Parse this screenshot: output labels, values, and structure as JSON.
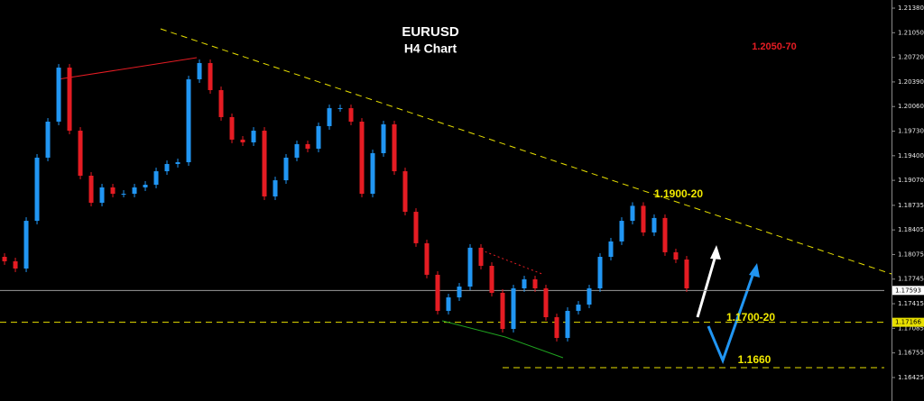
{
  "chart_data": {
    "type": "candlestick",
    "title": "EURUSD",
    "subtitle": "H4 Chart",
    "up_color": "#2196f3",
    "down_color": "#e51c23",
    "x": [
      0,
      1,
      2,
      3,
      4,
      5,
      6,
      7,
      8,
      9,
      10,
      11,
      12,
      13,
      14,
      15,
      16,
      17,
      18,
      19,
      20,
      21,
      22,
      23,
      24,
      25,
      26,
      27,
      28,
      29,
      30,
      31,
      32,
      33,
      34,
      35,
      36,
      37,
      38,
      39,
      40,
      41,
      42,
      43,
      44,
      45,
      46,
      47,
      48,
      49,
      50,
      51,
      52,
      53,
      54,
      55,
      56,
      57,
      58,
      59,
      60,
      61,
      62,
      63
    ],
    "open": [
      1.18044,
      1.17984,
      1.17887,
      1.18527,
      1.19374,
      1.19857,
      1.20582,
      1.19736,
      1.19132,
      1.18769,
      1.18975,
      1.1889,
      1.1889,
      1.18975,
      1.19011,
      1.19192,
      1.19289,
      1.19313,
      1.20425,
      1.20643,
      1.2028,
      1.19918,
      1.19616,
      1.19579,
      1.19736,
      1.18854,
      1.19071,
      1.19374,
      1.19555,
      1.19494,
      1.19797,
      1.20038,
      1.20038,
      1.19857,
      1.1889,
      1.19434,
      1.19821,
      1.19192,
      1.18648,
      1.18226,
      1.17803,
      1.17319,
      1.175,
      1.17645,
      1.18166,
      1.17923,
      1.17561,
      1.17077,
      1.17621,
      1.17742,
      1.17621,
      1.17234,
      1.16956,
      1.17319,
      1.17403,
      1.17621,
      1.18044,
      1.1825,
      1.18527,
      1.18728,
      1.18371,
      1.18565,
      1.18105,
      1.18008
    ],
    "high": [
      1.18092,
      1.18032,
      1.18575,
      1.19422,
      1.19905,
      1.2063,
      1.2063,
      1.19784,
      1.1918,
      1.19023,
      1.19023,
      1.18938,
      1.19023,
      1.19059,
      1.1924,
      1.19337,
      1.19361,
      1.20473,
      1.20691,
      1.20691,
      1.20328,
      1.19966,
      1.19664,
      1.19784,
      1.19784,
      1.19119,
      1.19422,
      1.19603,
      1.19603,
      1.19845,
      1.20086,
      1.20086,
      1.20086,
      1.19905,
      1.19482,
      1.19869,
      1.19869,
      1.1924,
      1.18696,
      1.18274,
      1.17851,
      1.17548,
      1.17693,
      1.18214,
      1.18214,
      1.17971,
      1.17609,
      1.17669,
      1.1779,
      1.1779,
      1.17669,
      1.17282,
      1.17367,
      1.17451,
      1.17669,
      1.18092,
      1.18298,
      1.18575,
      1.18776,
      1.18776,
      1.18613,
      1.18613,
      1.18153,
      1.18056
    ],
    "low": [
      1.17936,
      1.17839,
      1.17839,
      1.18479,
      1.19326,
      1.19809,
      1.19688,
      1.19084,
      1.18721,
      1.18721,
      1.18842,
      1.18842,
      1.18842,
      1.18927,
      1.18963,
      1.19144,
      1.19241,
      1.19265,
      1.20377,
      1.20232,
      1.1987,
      1.19568,
      1.19531,
      1.19531,
      1.18806,
      1.18806,
      1.19023,
      1.19326,
      1.19446,
      1.19446,
      1.19749,
      1.1999,
      1.19809,
      1.18842,
      1.18842,
      1.19386,
      1.19144,
      1.186,
      1.18178,
      1.17755,
      1.17271,
      1.17271,
      1.17452,
      1.17597,
      1.17875,
      1.17513,
      1.17029,
      1.17029,
      1.17573,
      1.17573,
      1.17186,
      1.16908,
      1.16908,
      1.17271,
      1.17355,
      1.17573,
      1.17996,
      1.18202,
      1.18479,
      1.18323,
      1.18323,
      1.18057,
      1.1796,
      1.17573
    ],
    "close": [
      1.17984,
      1.17887,
      1.18527,
      1.19374,
      1.19857,
      1.20582,
      1.19736,
      1.19132,
      1.18769,
      1.18975,
      1.1889,
      1.1889,
      1.18975,
      1.19011,
      1.19192,
      1.19289,
      1.19313,
      1.20425,
      1.20643,
      1.2028,
      1.19918,
      1.19616,
      1.19579,
      1.19736,
      1.18854,
      1.19071,
      1.19374,
      1.19555,
      1.19494,
      1.19797,
      1.20038,
      1.20038,
      1.19857,
      1.1889,
      1.19434,
      1.19821,
      1.19192,
      1.18648,
      1.18226,
      1.17803,
      1.17319,
      1.175,
      1.17645,
      1.18166,
      1.17923,
      1.17561,
      1.17077,
      1.17621,
      1.17742,
      1.17621,
      1.17234,
      1.16956,
      1.17319,
      1.17403,
      1.17621,
      1.18044,
      1.1825,
      1.18527,
      1.18728,
      1.18371,
      1.18565,
      1.18105,
      1.18008,
      1.17621
    ],
    "xlim": [
      -0.42,
      81.92
    ],
    "ylim": [
      1.1611,
      1.21489
    ],
    "yticks": [
      {
        "value": 1.2138,
        "label": "1.21380"
      },
      {
        "value": 1.2105,
        "label": "1.21050"
      },
      {
        "value": 1.2072,
        "label": "1.20720"
      },
      {
        "value": 1.2039,
        "label": "1.20390"
      },
      {
        "value": 1.2006,
        "label": "1.20060"
      },
      {
        "value": 1.1973,
        "label": "1.19730"
      },
      {
        "value": 1.194,
        "label": "1.19400"
      },
      {
        "value": 1.1907,
        "label": "1.19070"
      },
      1.18735,
      1.18405,
      1.18075,
      1.17745,
      1.17415,
      1.17085,
      1.16755,
      1.16425
    ],
    "levels": [
      {
        "value": 1.17593,
        "color": "#9a9a9a",
        "style": "solid",
        "from": -0.42,
        "marker_bg": "#ffffff"
      },
      {
        "value": 1.17166,
        "color": "#e8e000",
        "style": "dashed",
        "from": -0.42,
        "marker_bg": "#e8e000"
      },
      {
        "value": 1.16557,
        "color": "#e8e000",
        "style": "dashed",
        "from": 46.0
      }
    ],
    "lines": [
      {
        "x": [
          14.41,
          81.92
        ],
        "y": [
          1.21102,
          1.17814
        ],
        "color": "#e8e000",
        "style": "dashed"
      },
      {
        "x": [
          4.92,
          17.75
        ],
        "y": [
          1.20425,
          1.20715
        ],
        "color": "#e51c23",
        "style": "solid"
      },
      {
        "x": [
          44.0,
          49.75
        ],
        "y": [
          1.18135,
          1.17808
        ],
        "color": "#e51c23",
        "style": "dotted"
      },
      {
        "x": [
          40.42,
          46.25,
          51.58
        ],
        "y": [
          1.17186,
          1.16968,
          1.1669
        ],
        "color": "#1fa31f",
        "style": "solid"
      }
    ],
    "annotations": [
      {
        "text": "1.2050-70",
        "color": "#e51c23"
      },
      {
        "text": "1.1900-20",
        "color": "#f2ea00"
      },
      {
        "text": "1.1700-20",
        "color": "#f2ea00"
      },
      {
        "text": "1.1660",
        "color": "#f2ea00"
      }
    ]
  }
}
